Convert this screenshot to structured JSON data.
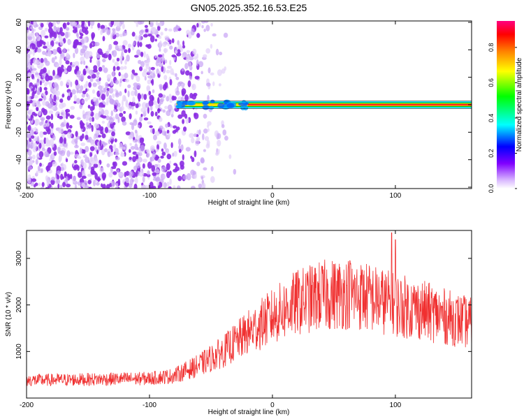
{
  "title": "GN05.2025.352.16.53.E25",
  "chart_data": [
    {
      "type": "heatmap",
      "title": "GN05.2025.352.16.53.E25",
      "xlabel": "Height of straight line (km)",
      "ylabel": "Frequency (Hz)",
      "xlim": [
        -200,
        162
      ],
      "ylim": [
        -61,
        61
      ],
      "xticks": [
        -200,
        -100,
        0,
        100
      ],
      "yticks": [
        -60,
        -40,
        -20,
        0,
        20,
        40,
        60
      ],
      "noise_region_x": [
        -200,
        -45
      ],
      "signal_track": {
        "x_start": -78,
        "x_end": 162,
        "frequency": 0
      },
      "colorbar": {
        "label": "Normalized spectral amplitude",
        "range": [
          0.0,
          0.95
        ],
        "ticks": [
          0.0,
          0.2,
          0.4,
          0.6,
          0.8
        ],
        "colors": [
          "#ffffff",
          "#d9b8ff",
          "#8000ff",
          "#0000ff",
          "#00ffff",
          "#00ff00",
          "#ffff00",
          "#ff8000",
          "#ff0000",
          "#ff0080"
        ]
      }
    },
    {
      "type": "line",
      "xlabel": "Height of straight line (km)",
      "ylabel": "SNR (10 * v/v)",
      "xlim": [
        -200,
        162
      ],
      "ylim": [
        0,
        3600
      ],
      "xticks": [
        -200,
        -100,
        0,
        100
      ],
      "yticks": [
        1000,
        2000,
        3000
      ],
      "series": [
        {
          "name": "SNR",
          "color": "#f03030",
          "trend_x": [
            -200,
            -150,
            -100,
            -80,
            -60,
            -40,
            -20,
            0,
            20,
            40,
            60,
            80,
            100,
            120,
            140,
            162
          ],
          "trend_y": [
            380,
            400,
            420,
            480,
            700,
            1000,
            1400,
            1750,
            2050,
            2200,
            2250,
            2150,
            2000,
            1900,
            1750,
            1600
          ],
          "spikes": [
            {
              "x": 97,
              "y": 3550
            },
            {
              "x": 100,
              "y": 3400
            },
            {
              "x": 63,
              "y": 2950
            },
            {
              "x": 73,
              "y": 2750
            }
          ]
        }
      ]
    }
  ]
}
